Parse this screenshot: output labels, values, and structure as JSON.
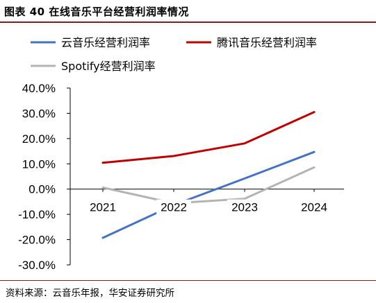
{
  "title": "图表 40 在线音乐平台经营利润率情况",
  "source": "资料来源：云音乐年报，华安证券研究所",
  "chart_data": {
    "type": "line",
    "title": "图表 40 在线音乐平台经营利润率情况",
    "xlabel": "",
    "ylabel": "",
    "categories": [
      "2021",
      "2022",
      "2023",
      "2024"
    ],
    "ylim": [
      -30,
      40
    ],
    "ytick_step": 10,
    "ytick_labels": [
      "40.0%",
      "30.0%",
      "20.0%",
      "10.0%",
      "0.0%",
      "-10.0%",
      "-20.0%",
      "-30.0%"
    ],
    "grid": false,
    "legend_position": "top",
    "series": [
      {
        "name": "云音乐经营利润率",
        "color": "#4472c4",
        "values": [
          -19.3,
          -6.3,
          4.2,
          14.7
        ]
      },
      {
        "name": "腾讯音乐经营利润率",
        "color": "#c00000",
        "values": [
          10.4,
          13.1,
          18.1,
          30.5
        ]
      },
      {
        "name": "Spotify经营利润率",
        "color": "#b4b4b4",
        "values": [
          0.6,
          -5.6,
          -3.8,
          8.6
        ]
      }
    ]
  }
}
